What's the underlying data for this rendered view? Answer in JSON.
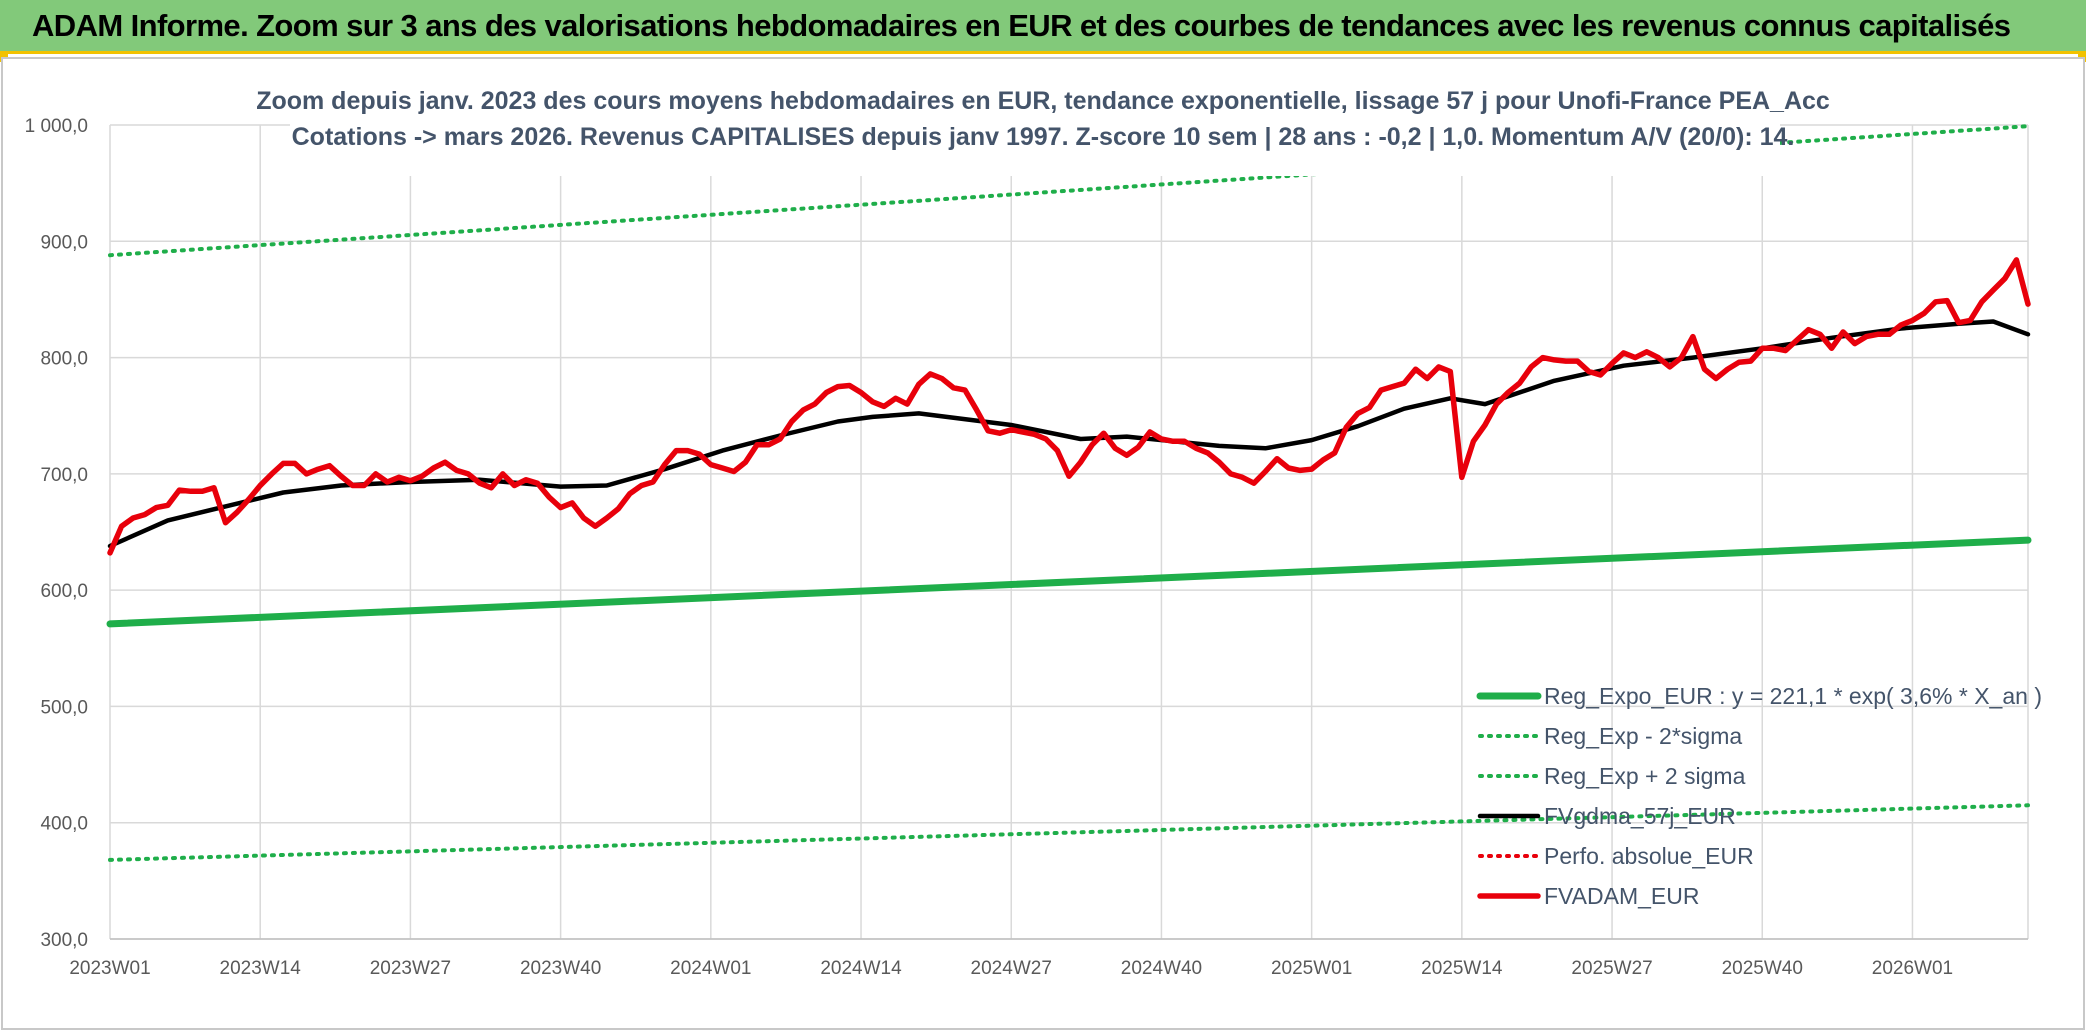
{
  "banner": {
    "title": "ADAM Informe. Zoom sur 3 ans des valorisations hebdomadaires en EUR et des courbes de tendances avec les revenus connus capitalisés"
  },
  "chart_data": {
    "type": "line",
    "title_line1": "Zoom depuis janv. 2023 des cours moyens hebdomadaires en EUR, tendance exponentielle, lissage 57 j pour Unofi-France PEA_Acc",
    "title_line2": "Cotations -> mars 2026. Revenus CAPITALISES depuis janv 1997. Z-score 10 sem | 28 ans : -0,2 | 1,0. Momentum A/V (20/0): 14.",
    "ylim": [
      300,
      1000
    ],
    "yticks": [
      300,
      400,
      500,
      600,
      700,
      800,
      900,
      1000
    ],
    "ytick_labels": [
      "300,0",
      "400,0",
      "500,0",
      "600,0",
      "700,0",
      "800,0",
      "900,0",
      "1 000,0"
    ],
    "x_start_week": 0,
    "x_end_week": 166,
    "xtick_labels": [
      "2023W01",
      "2023W14",
      "2023W27",
      "2023W40",
      "2024W01",
      "2024W14",
      "2024W27",
      "2024W40",
      "2025W01",
      "2025W14",
      "2025W27",
      "2025W40",
      "2026W01"
    ],
    "xtick_positions": [
      0,
      13,
      26,
      39,
      52,
      65,
      78,
      91,
      104,
      117,
      130,
      143,
      156
    ],
    "grid": true,
    "legend_position": "bottom-right",
    "series": [
      {
        "name": "Reg_Expo_EUR : y = 221,1 * exp( 3,6% *  X_an )",
        "style": "thick-solid",
        "color": "#1fae4a",
        "x": [
          0,
          166
        ],
        "values": [
          571,
          643
        ]
      },
      {
        "name": "Reg_Exp - 2*sigma",
        "style": "dotted",
        "color": "#1fae4a",
        "x": [
          0,
          166
        ],
        "values": [
          368,
          415
        ]
      },
      {
        "name": "Reg_Exp + 2 sigma",
        "style": "dotted",
        "color": "#1fae4a",
        "x": [
          0,
          166
        ],
        "values": [
          888,
          999
        ]
      },
      {
        "name": "FVgdma_57j_EUR",
        "style": "solid",
        "color": "#000000",
        "x": [
          0,
          5,
          10,
          15,
          20,
          26,
          32,
          39,
          43,
          48,
          53,
          58,
          63,
          66,
          70,
          78,
          84,
          88,
          96,
          100,
          104,
          108,
          112,
          116,
          119,
          125,
          131,
          137,
          143,
          149,
          155,
          160,
          163,
          166
        ],
        "values": [
          638,
          660,
          672,
          684,
          690,
          693,
          695,
          689,
          690,
          704,
          720,
          733,
          745,
          749,
          752,
          742,
          730,
          732,
          724,
          722,
          729,
          741,
          756,
          765,
          760,
          780,
          793,
          800,
          808,
          817,
          825,
          829,
          831,
          820
        ]
      },
      {
        "name": "Perfo. absolue_EUR",
        "style": "dotted",
        "color": "#e8000b",
        "x": [],
        "values": []
      },
      {
        "name": "FVADAM_EUR",
        "style": "solid",
        "color": "#e8000b",
        "x": [
          0,
          1,
          2,
          3,
          4,
          5,
          6,
          7,
          8,
          9,
          10,
          11,
          12,
          13,
          14,
          15,
          16,
          17,
          18,
          19,
          20,
          21,
          22,
          23,
          24,
          25,
          26,
          27,
          28,
          29,
          30,
          31,
          32,
          33,
          34,
          35,
          36,
          37,
          38,
          39,
          40,
          41,
          42,
          43,
          44,
          45,
          46,
          47,
          48,
          49,
          50,
          51,
          52,
          53,
          54,
          55,
          56,
          57,
          58,
          59,
          60,
          61,
          62,
          63,
          64,
          65,
          66,
          67,
          68,
          69,
          70,
          71,
          72,
          73,
          74,
          75,
          76,
          77,
          78,
          79,
          80,
          81,
          82,
          83,
          84,
          85,
          86,
          87,
          88,
          89,
          90,
          91,
          92,
          93,
          94,
          95,
          96,
          97,
          98,
          99,
          100,
          101,
          102,
          103,
          104,
          105,
          106,
          107,
          108,
          109,
          110,
          111,
          112,
          113,
          114,
          115,
          116,
          117,
          118,
          119,
          120,
          121,
          122,
          123,
          124,
          125,
          126,
          127,
          128,
          129,
          130,
          131,
          132,
          133,
          134,
          135,
          136,
          137,
          138,
          139,
          140,
          141,
          142,
          143,
          144,
          145,
          146,
          147,
          148,
          149,
          150,
          151,
          152,
          153,
          154,
          155,
          156,
          157,
          158,
          159,
          160,
          161,
          162,
          163,
          164,
          165,
          166
        ],
        "values": [
          632,
          655,
          662,
          665,
          671,
          673,
          686,
          685,
          685,
          688,
          658,
          667,
          678,
          690,
          700,
          709,
          709,
          700,
          704,
          707,
          698,
          690,
          690,
          700,
          693,
          697,
          694,
          698,
          705,
          710,
          703,
          700,
          692,
          688,
          700,
          690,
          695,
          692,
          680,
          671,
          675,
          662,
          655,
          662,
          670,
          683,
          690,
          693,
          708,
          720,
          720,
          717,
          708,
          705,
          702,
          710,
          725,
          725,
          730,
          745,
          755,
          760,
          770,
          775,
          776,
          770,
          762,
          758,
          765,
          760,
          777,
          786,
          782,
          774,
          772,
          755,
          737,
          735,
          738,
          736,
          734,
          730,
          720,
          698,
          710,
          725,
          735,
          722,
          716,
          723,
          736,
          730,
          728,
          728,
          722,
          718,
          710,
          700,
          697,
          692,
          702,
          713,
          705,
          703,
          704,
          712,
          718,
          740,
          752,
          757,
          772,
          775,
          778,
          790,
          782,
          792,
          788,
          697,
          728,
          742,
          760,
          770,
          778,
          792,
          800,
          798,
          797,
          797,
          788,
          785,
          795,
          804,
          800,
          805,
          800,
          792,
          800,
          818,
          790,
          782,
          790,
          796,
          797,
          808,
          808,
          806,
          815,
          824,
          820,
          808,
          822,
          812,
          818,
          820,
          820,
          828,
          832,
          838,
          848,
          849,
          830,
          832,
          848,
          858,
          868,
          884,
          846
        ]
      }
    ]
  }
}
